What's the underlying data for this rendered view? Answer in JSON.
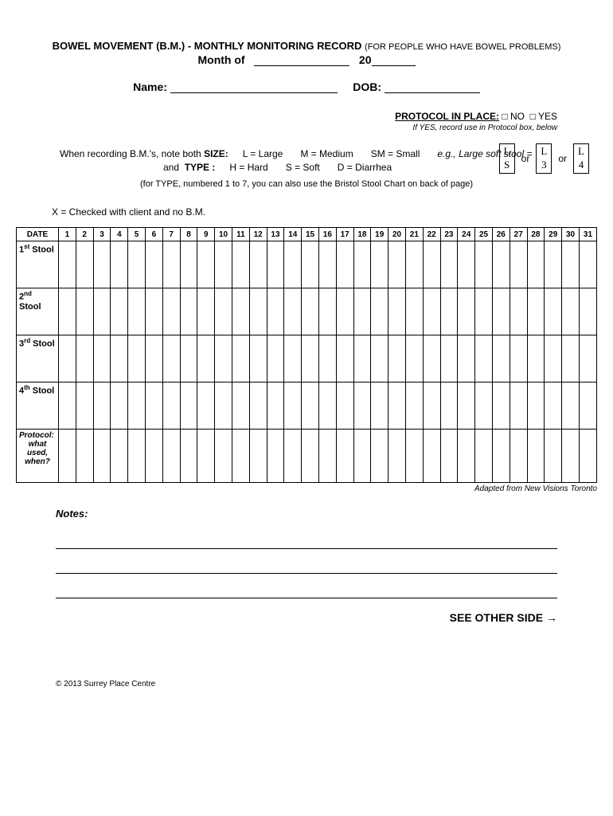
{
  "header": {
    "title_main": "BOWEL MOVEMENT (B.M.) - MONTHLY MONITORING RECORD",
    "title_sub": "(FOR PEOPLE WHO HAVE BOWEL PROBLEMS)",
    "month_label": "Month of",
    "year_prefix": "20",
    "name_label": "Name:",
    "dob_label": "DOB:"
  },
  "protocol": {
    "label": "PROTOCOL IN PLACE:",
    "no": "NO",
    "yes": "YES",
    "note": "If YES, record use in Protocol box, below"
  },
  "legend": {
    "intro1": "When  recording B.M.'s, note both",
    "size_label": "SIZE:",
    "size_items": [
      "L = Large",
      "M = Medium",
      "SM = Small"
    ],
    "eg": "e.g., Large soft stool  =",
    "intro2": "and",
    "type_label": "TYPE :",
    "type_items": [
      "H = Hard",
      "S = Soft",
      "D = Diarrhea"
    ],
    "or": "or",
    "example1_top": "L",
    "example1_bot": "S",
    "example2_top": "L",
    "example2_bot": "3",
    "example3_top": "L",
    "example3_bot": "4",
    "bristol_note": "(for TYPE, numbered 1 to 7, you can also use the Bristol Stool Chart on back of page)"
  },
  "x_note": "X = Checked with client and no B.M.",
  "table": {
    "date_header": "DATE",
    "day_count": 31,
    "rows": [
      {
        "ord": "1",
        "sup": "st",
        "label": "Stool"
      },
      {
        "ord": "2",
        "sup": "nd",
        "label": "Stool"
      },
      {
        "ord": "3",
        "sup": "rd",
        "label": "Stool"
      },
      {
        "ord": "4",
        "sup": "th",
        "label": "Stool"
      }
    ],
    "protocol_row": {
      "line1": "Protocol:",
      "line2": "what",
      "line3": "used,",
      "line4": "when?"
    }
  },
  "adapted": "Adapted from New Visions Toronto",
  "notes_label": "Notes:",
  "see_other": "SEE OTHER SIDE →",
  "copyright": "© 2013 Surrey Place Centre"
}
